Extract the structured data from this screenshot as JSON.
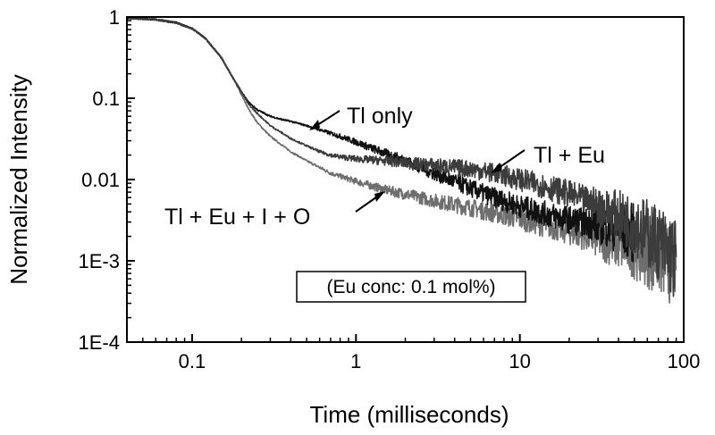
{
  "chart_data": {
    "type": "line",
    "title": "",
    "xlabel": "Time  (milliseconds)",
    "ylabel": "Normalized Intensity",
    "xscale": "log",
    "yscale": "log",
    "xlim": [
      0.04,
      100
    ],
    "ylim": [
      0.0001,
      1
    ],
    "grid": false,
    "x_ticks": [
      {
        "value": 0.1,
        "label": "0.1"
      },
      {
        "value": 1,
        "label": "1"
      },
      {
        "value": 10,
        "label": "10"
      },
      {
        "value": 100,
        "label": "100"
      }
    ],
    "y_ticks": [
      {
        "value": 1,
        "label": "1"
      },
      {
        "value": 0.1,
        "label": "0.1"
      },
      {
        "value": 0.01,
        "label": "0.01"
      },
      {
        "value": 0.001,
        "label": "1E-3"
      },
      {
        "value": 0.0001,
        "label": "1E-4"
      }
    ],
    "note": "(Eu conc: 0.1 mol%)",
    "series": [
      {
        "name": "Tl only",
        "color": "#111111",
        "x": [
          0.04,
          0.06,
          0.08,
          0.1,
          0.12,
          0.15,
          0.18,
          0.2,
          0.22,
          0.25,
          0.3,
          0.35,
          0.4,
          0.5,
          0.6,
          0.7,
          0.8,
          1,
          1.5,
          2,
          3,
          5,
          7,
          10,
          15,
          20,
          30,
          40,
          50
        ],
        "y": [
          0.97,
          0.93,
          0.85,
          0.72,
          0.55,
          0.32,
          0.17,
          0.12,
          0.09,
          0.072,
          0.06,
          0.055,
          0.052,
          0.046,
          0.041,
          0.037,
          0.034,
          0.029,
          0.021,
          0.017,
          0.012,
          0.0078,
          0.006,
          0.0047,
          0.0037,
          0.0032,
          0.0028,
          0.0025,
          0.0022
        ]
      },
      {
        "name": "Tl + Eu",
        "color": "#3c3c3c",
        "x": [
          0.04,
          0.06,
          0.08,
          0.1,
          0.12,
          0.15,
          0.18,
          0.2,
          0.22,
          0.25,
          0.3,
          0.4,
          0.5,
          0.6,
          0.7,
          0.8,
          1,
          1.5,
          2,
          3,
          5,
          7,
          10,
          15,
          20,
          30,
          40,
          50,
          60,
          70,
          80,
          90
        ],
        "y": [
          0.97,
          0.93,
          0.85,
          0.72,
          0.55,
          0.32,
          0.17,
          0.12,
          0.085,
          0.065,
          0.046,
          0.032,
          0.026,
          0.022,
          0.02,
          0.019,
          0.018,
          0.017,
          0.016,
          0.015,
          0.0135,
          0.012,
          0.01,
          0.008,
          0.0066,
          0.0048,
          0.0036,
          0.0028,
          0.0022,
          0.0017,
          0.0013,
          0.001
        ]
      },
      {
        "name": "Tl + Eu + I + O",
        "color": "#6e6e6e",
        "x": [
          0.04,
          0.06,
          0.08,
          0.1,
          0.12,
          0.15,
          0.18,
          0.2,
          0.22,
          0.25,
          0.3,
          0.4,
          0.5,
          0.7,
          1,
          1.5,
          2,
          3,
          5,
          7,
          10,
          15,
          20,
          30,
          50,
          70,
          90
        ],
        "y": [
          0.97,
          0.93,
          0.85,
          0.72,
          0.55,
          0.32,
          0.17,
          0.11,
          0.075,
          0.05,
          0.034,
          0.022,
          0.017,
          0.012,
          0.0095,
          0.0075,
          0.0066,
          0.0055,
          0.0045,
          0.0039,
          0.0033,
          0.0027,
          0.0023,
          0.0018,
          0.0014,
          0.0011,
          0.0009
        ]
      }
    ],
    "annotations": [
      {
        "text": "Tl only",
        "series": "Tl only"
      },
      {
        "text": "Tl + Eu",
        "series": "Tl + Eu"
      },
      {
        "text": "Tl + Eu + I + O",
        "series": "Tl + Eu + I + O"
      }
    ]
  }
}
